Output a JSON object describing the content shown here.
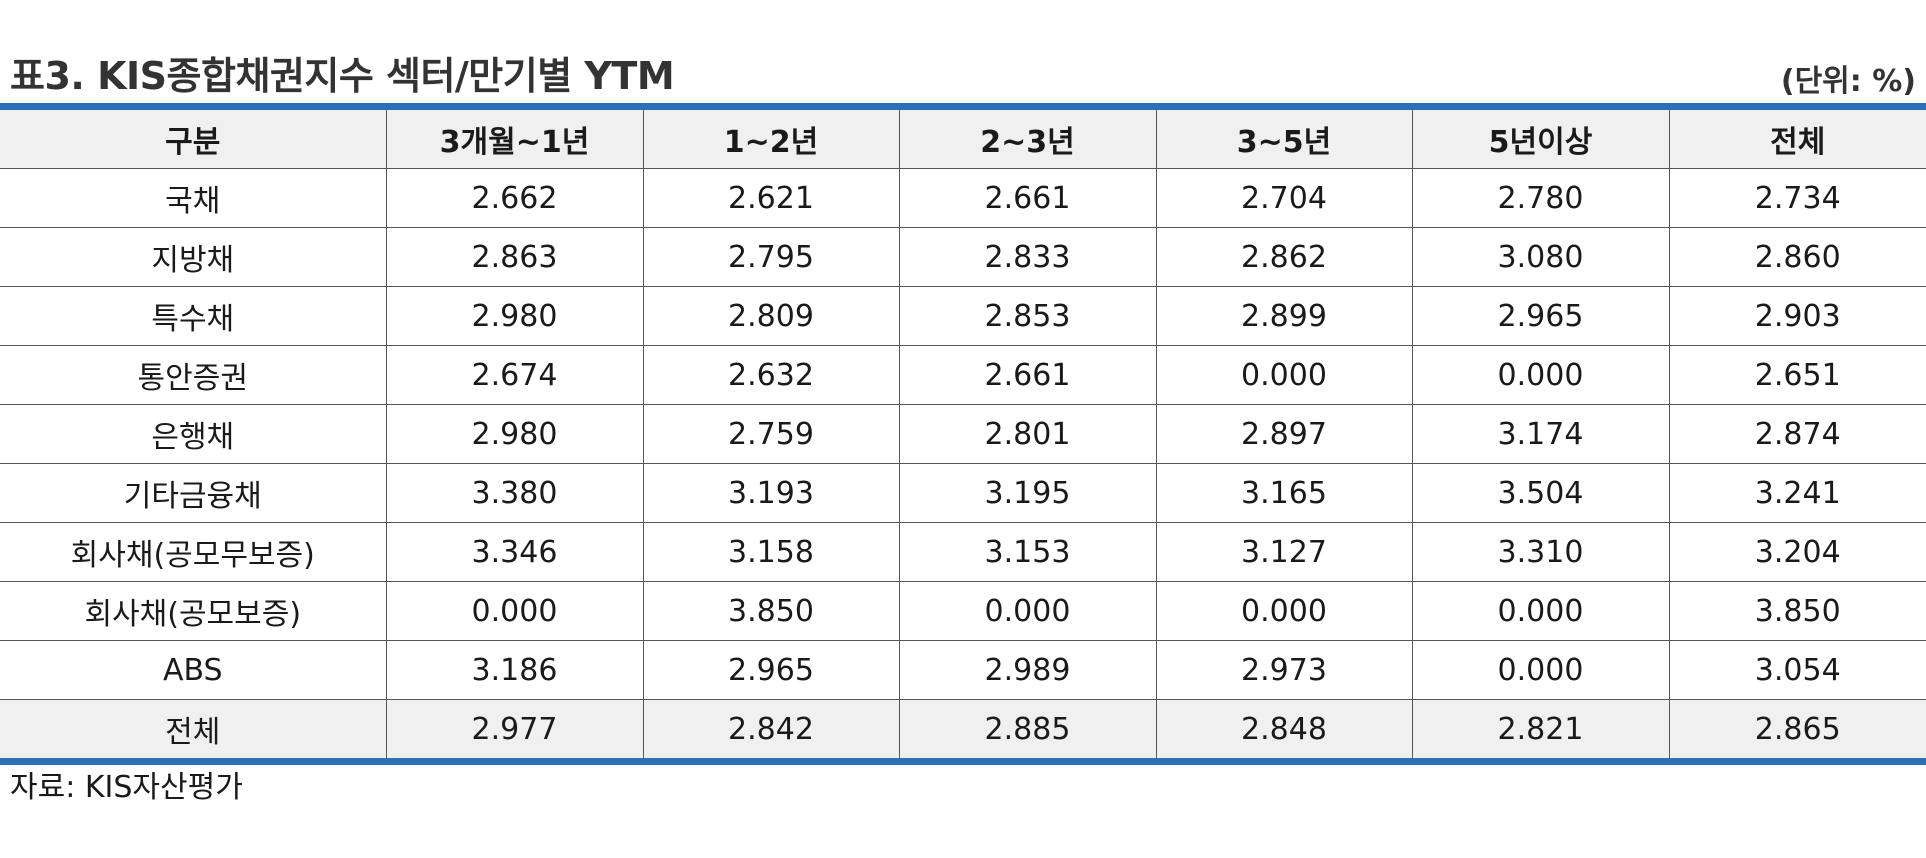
{
  "title": "표3. KIS종합채권지수 섹터/만기별 YTM",
  "unit": "(단위: %)",
  "columns": [
    "구분",
    "3개월~1년",
    "1~2년",
    "2~3년",
    "3~5년",
    "5년이상",
    "전체"
  ],
  "rows": [
    [
      "국채",
      "2.662",
      "2.621",
      "2.661",
      "2.704",
      "2.780",
      "2.734"
    ],
    [
      "지방채",
      "2.863",
      "2.795",
      "2.833",
      "2.862",
      "3.080",
      "2.860"
    ],
    [
      "특수채",
      "2.980",
      "2.809",
      "2.853",
      "2.899",
      "2.965",
      "2.903"
    ],
    [
      "통안증권",
      "2.674",
      "2.632",
      "2.661",
      "0.000",
      "0.000",
      "2.651"
    ],
    [
      "은행채",
      "2.980",
      "2.759",
      "2.801",
      "2.897",
      "3.174",
      "2.874"
    ],
    [
      "기타금융채",
      "3.380",
      "3.193",
      "3.195",
      "3.165",
      "3.504",
      "3.241"
    ],
    [
      "회사채(공모무보증)",
      "3.346",
      "3.158",
      "3.153",
      "3.127",
      "3.310",
      "3.204"
    ],
    [
      "회사채(공모보증)",
      "0.000",
      "3.850",
      "0.000",
      "0.000",
      "0.000",
      "3.850"
    ],
    [
      "ABS",
      "3.186",
      "2.965",
      "2.989",
      "2.973",
      "0.000",
      "3.054"
    ]
  ],
  "total_row": [
    "전체",
    "2.977",
    "2.842",
    "2.885",
    "2.848",
    "2.821",
    "2.865"
  ],
  "source": "자료: KIS자산평가",
  "colors": {
    "accent": "#2e6fb5",
    "header_bg": "#f0f0f0"
  }
}
